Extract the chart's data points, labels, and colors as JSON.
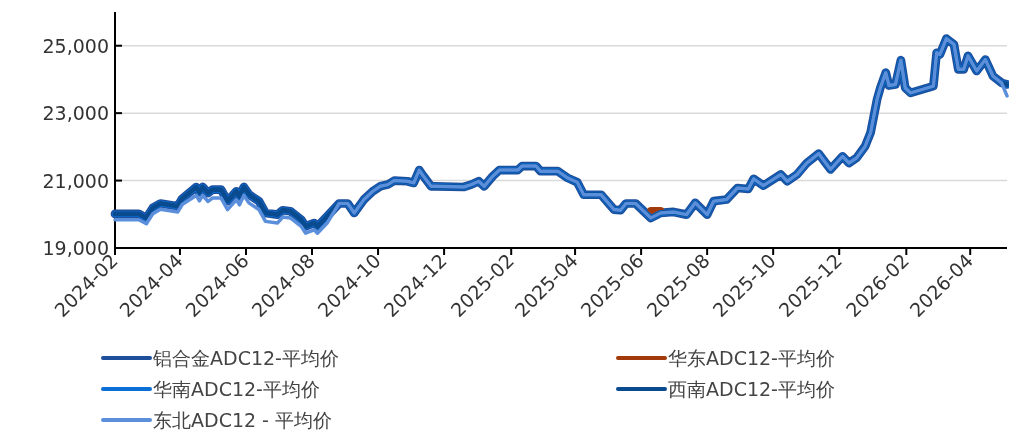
{
  "chart_data": {
    "type": "line",
    "x": [
      "2024-02-01",
      "2024-02-23",
      "2024-03-01",
      "2024-03-07",
      "2024-03-14",
      "2024-03-30",
      "2024-04-03",
      "2024-04-16",
      "2024-04-19",
      "2024-04-22",
      "2024-04-27",
      "2024-05-01",
      "2024-05-09",
      "2024-05-15",
      "2024-05-23",
      "2024-05-26",
      "2024-05-30",
      "2024-06-04",
      "2024-06-13",
      "2024-06-19",
      "2024-06-30",
      "2024-07-05",
      "2024-07-12",
      "2024-07-22",
      "2024-07-26",
      "2024-08-03",
      "2024-08-06",
      "2024-08-15",
      "2024-08-26",
      "2024-09-03",
      "2024-09-09",
      "2024-09-18",
      "2024-09-26",
      "2024-10-03",
      "2024-10-10",
      "2024-10-16",
      "2024-10-28",
      "2024-11-03",
      "2024-11-08",
      "2024-11-12",
      "2024-11-19",
      "2024-11-23",
      "2024-12-19",
      "2024-12-26",
      "2025-01-02",
      "2025-01-07",
      "2025-01-15",
      "2025-01-21",
      "2025-02-07",
      "2025-02-11",
      "2025-02-24",
      "2025-02-28",
      "2025-03-16",
      "2025-03-25",
      "2025-04-03",
      "2025-04-09",
      "2025-04-25",
      "2025-05-07",
      "2025-05-13",
      "2025-05-18",
      "2025-05-27",
      "2025-06-10",
      "2025-06-19",
      "2025-07-01",
      "2025-07-13",
      "2025-07-21",
      "2025-08-01",
      "2025-08-07",
      "2025-08-19",
      "2025-08-29",
      "2025-09-08",
      "2025-09-13",
      "2025-09-22",
      "2025-10-08",
      "2025-10-14",
      "2025-10-23",
      "2025-11-01",
      "2025-11-12",
      "2025-11-23",
      "2025-12-04",
      "2025-12-10",
      "2025-12-17",
      "2025-12-25",
      "2025-12-30",
      "2026-01-05",
      "2026-01-08",
      "2026-01-13",
      "2026-01-16",
      "2026-01-22",
      "2026-01-27",
      "2026-01-31",
      "2026-02-05",
      "2026-02-26",
      "2026-03-01",
      "2026-03-04",
      "2026-03-10",
      "2026-03-17",
      "2026-03-21",
      "2026-03-26",
      "2026-03-30",
      "2026-04-07",
      "2026-04-15",
      "2026-04-22",
      "2026-04-30",
      "2026-05-05"
    ],
    "series": [
      {
        "name": "铝合金ADC12-平均价",
        "color": "#1f4e9a",
        "values": [
          20010,
          20010,
          19890,
          20190,
          20320,
          20240,
          20460,
          20810,
          20650,
          20810,
          20630,
          20730,
          20730,
          20390,
          20680,
          20530,
          20810,
          20580,
          20390,
          20040,
          19990,
          20120,
          20090,
          19840,
          19640,
          19740,
          19640,
          19940,
          20320,
          20320,
          20040,
          20440,
          20680,
          20830,
          20880,
          21000,
          20980,
          20930,
          21310,
          21130,
          20830,
          20830,
          20810,
          20880,
          20980,
          20830,
          21130,
          21310,
          21310,
          21430,
          21430,
          21280,
          21280,
          21080,
          20950,
          20580,
          20580,
          20140,
          20120,
          20320,
          20320,
          19890,
          20040,
          20070,
          19990,
          20340,
          19990,
          20390,
          20440,
          20780,
          20750,
          21050,
          20850,
          21180,
          20980,
          21180,
          21520,
          21800,
          21330,
          21720,
          21520,
          21670,
          22020,
          22420,
          23410,
          23750,
          24200,
          23820,
          23850,
          24570,
          23750,
          23600,
          23800,
          24790,
          24740,
          25210,
          25040,
          24300,
          24300,
          24700,
          24250,
          24590,
          24100,
          23900,
          23850
        ]
      },
      {
        "name": "华东ADC12-平均价",
        "color": "#a33a0c",
        "values": [
          null,
          null,
          null,
          null,
          null,
          null,
          null,
          null,
          null,
          null,
          null,
          null,
          null,
          null,
          null,
          null,
          null,
          null,
          null,
          null,
          null,
          null,
          null,
          null,
          null,
          null,
          null,
          null,
          null,
          null,
          null,
          null,
          null,
          null,
          null,
          null,
          null,
          null,
          null,
          null,
          null,
          null,
          null,
          null,
          null,
          null,
          null,
          null,
          null,
          null,
          null,
          null,
          null,
          null,
          null,
          null,
          null,
          null,
          null,
          null,
          null,
          20110,
          20110,
          null,
          null,
          null,
          null,
          null,
          null,
          null,
          null,
          null,
          null,
          null,
          null,
          null,
          null,
          null,
          null,
          null,
          null,
          null,
          null,
          null,
          null,
          null,
          null,
          null,
          null,
          null,
          null,
          null,
          null,
          null,
          null,
          null,
          null,
          null,
          null,
          null,
          null,
          null,
          null,
          null,
          null
        ]
      },
      {
        "name": "华南ADC12-平均价",
        "color": "#0a6fd6",
        "values": [
          20010,
          20010,
          19890,
          20190,
          20320,
          20240,
          20460,
          20810,
          20650,
          20810,
          20630,
          20730,
          20730,
          20390,
          20680,
          20530,
          20810,
          20580,
          20390,
          20040,
          19990,
          20120,
          20090,
          19840,
          19640,
          19740,
          19640,
          19940,
          20320,
          20320,
          20040,
          20440,
          20680,
          20830,
          20880,
          21000,
          20980,
          20930,
          21310,
          21130,
          20830,
          20830,
          20810,
          20880,
          20980,
          20830,
          21130,
          21310,
          21310,
          21430,
          21430,
          21280,
          21280,
          21080,
          20950,
          20580,
          20580,
          20140,
          20120,
          20320,
          20320,
          19890,
          20040,
          20070,
          19990,
          20340,
          19990,
          20390,
          20440,
          20780,
          20750,
          21050,
          20850,
          21180,
          20980,
          21180,
          21520,
          21800,
          21330,
          21720,
          21520,
          21670,
          22020,
          22420,
          23410,
          23750,
          24200,
          23820,
          23850,
          24570,
          23750,
          23600,
          23800,
          24790,
          24740,
          25210,
          25040,
          24300,
          24300,
          24700,
          24250,
          24590,
          24100,
          23900,
          23850
        ]
      },
      {
        "name": "西南ADC12-平均价",
        "color": "#0a4a8f",
        "values": [
          20010,
          20010,
          19890,
          20190,
          20320,
          20240,
          20460,
          20810,
          20650,
          20810,
          20630,
          20730,
          20730,
          20390,
          20680,
          20530,
          20810,
          20580,
          20390,
          20040,
          19990,
          20120,
          20090,
          19840,
          19640,
          19740,
          19640,
          19940,
          20320,
          20320,
          20040,
          20440,
          20680,
          20830,
          20880,
          21000,
          20980,
          20930,
          21310,
          21130,
          20830,
          20830,
          20810,
          20880,
          20980,
          20830,
          21130,
          21310,
          21310,
          21430,
          21430,
          21280,
          21280,
          21080,
          20950,
          20580,
          20580,
          20140,
          20120,
          20320,
          20320,
          19890,
          20040,
          20070,
          19990,
          20340,
          19990,
          20390,
          20440,
          20780,
          20750,
          21050,
          20850,
          21180,
          20980,
          21180,
          21520,
          21800,
          21330,
          21720,
          21520,
          21670,
          22020,
          22420,
          23410,
          23750,
          24200,
          23820,
          23850,
          24570,
          23750,
          23600,
          23800,
          24790,
          24740,
          25210,
          25040,
          24300,
          24300,
          24700,
          24250,
          24590,
          24100,
          23900,
          23850
        ]
      },
      {
        "name": "东北ADC12 - 平均价",
        "color": "#5b8fdb",
        "values": [
          19840,
          19840,
          19720,
          20020,
          20150,
          20070,
          20290,
          20560,
          20400,
          20560,
          20380,
          20480,
          20480,
          20140,
          20430,
          20280,
          20560,
          20330,
          20140,
          19790,
          19740,
          19920,
          19890,
          19640,
          19440,
          19540,
          19440,
          19740,
          20320,
          20320,
          20040,
          20440,
          20680,
          20830,
          20880,
          21000,
          20980,
          20930,
          21310,
          21130,
          20830,
          20830,
          20810,
          20880,
          20980,
          20830,
          21130,
          21310,
          21310,
          21430,
          21430,
          21280,
          21280,
          21080,
          20950,
          20580,
          20580,
          20140,
          20120,
          20320,
          20320,
          19890,
          20040,
          20070,
          19990,
          20340,
          19990,
          20390,
          20440,
          20780,
          20750,
          21050,
          20850,
          21180,
          20980,
          21180,
          21520,
          21800,
          21330,
          21720,
          21520,
          21670,
          22020,
          22420,
          23410,
          23750,
          24200,
          23820,
          23850,
          24570,
          23750,
          23600,
          23800,
          24790,
          24740,
          25210,
          25040,
          24300,
          24300,
          24700,
          24250,
          24590,
          24100,
          23900,
          23510
        ]
      }
    ],
    "xlim": [
      "2024-02-01",
      "2026-05-05"
    ],
    "xticks": [
      "2024-02",
      "2024-04",
      "2024-06",
      "2024-08",
      "2024-10",
      "2024-12",
      "2025-02",
      "2025-04",
      "2025-06",
      "2025-08",
      "2025-10",
      "2025-12",
      "2026-02",
      "2026-04"
    ],
    "ylim": [
      19000,
      26000
    ],
    "yticks": [
      {
        "value": 19000,
        "label": "19,000"
      },
      {
        "value": 21000,
        "label": "21,000"
      },
      {
        "value": 23000,
        "label": "23,000"
      },
      {
        "value": 25000,
        "label": "25,000"
      }
    ],
    "grid": "y",
    "legend": "bottom",
    "marker": "none",
    "line_style": "solid"
  }
}
